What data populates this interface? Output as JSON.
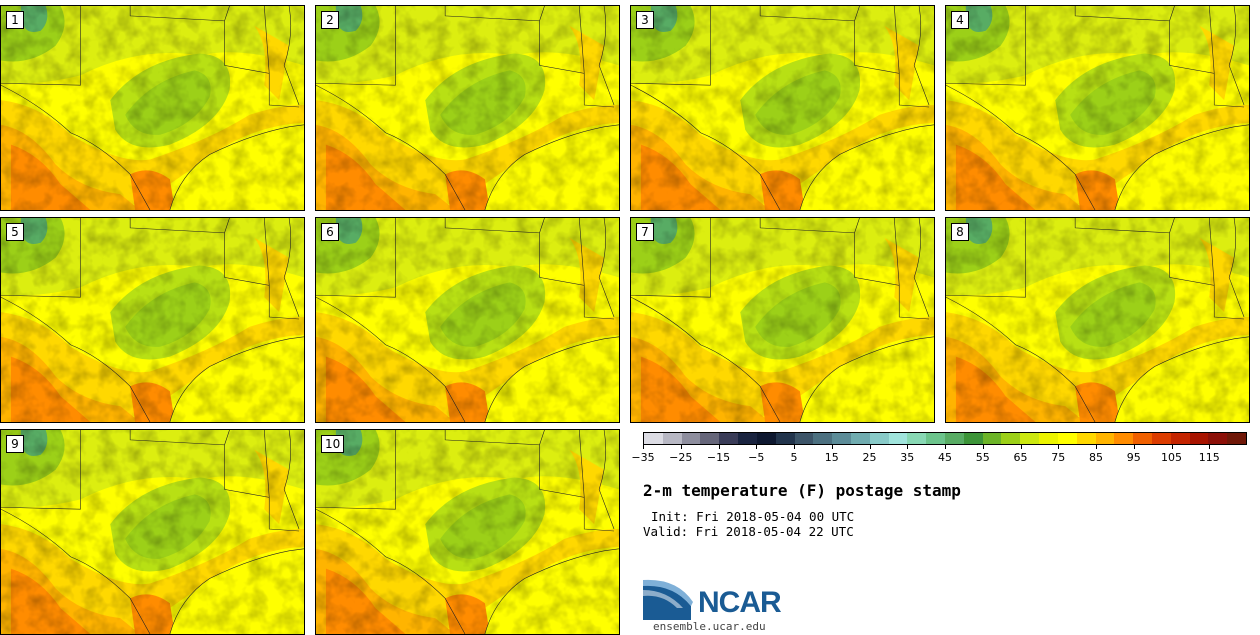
{
  "panels": [
    {
      "label": "1"
    },
    {
      "label": "2"
    },
    {
      "label": "3"
    },
    {
      "label": "4"
    },
    {
      "label": "5"
    },
    {
      "label": "6"
    },
    {
      "label": "7"
    },
    {
      "label": "8"
    },
    {
      "label": "9"
    },
    {
      "label": "10"
    }
  ],
  "colorbar": {
    "colors": [
      "#dcdce4",
      "#b8b8c4",
      "#8e8e9e",
      "#66667a",
      "#3a3c58",
      "#1a2440",
      "#0e1830",
      "#22344c",
      "#3c5468",
      "#4c7080",
      "#5c8c98",
      "#70acb0",
      "#88cac8",
      "#a0e4dc",
      "#88d8b4",
      "#6cc48c",
      "#58ac64",
      "#3c9438",
      "#6cb428",
      "#9cd018",
      "#cce810",
      "#ecf400",
      "#ffff00",
      "#ffd800",
      "#ffb400",
      "#ff8c00",
      "#f06000",
      "#dc3c00",
      "#c42400",
      "#a81400",
      "#8c1008",
      "#701808"
    ],
    "ticks": [
      "−35",
      "−25",
      "−15",
      "−5",
      "5",
      "15",
      "25",
      "35",
      "45",
      "55",
      "65",
      "75",
      "85",
      "95",
      "105",
      "115"
    ],
    "min": -40,
    "max": 120
  },
  "title": "2-m temperature (F) postage stamp",
  "init": "Init: Fri 2018-05-04 00 UTC",
  "valid": "Valid: Fri 2018-05-04 22 UTC",
  "logo": {
    "text": "NCAR",
    "url": "ensemble.ucar.edu"
  }
}
